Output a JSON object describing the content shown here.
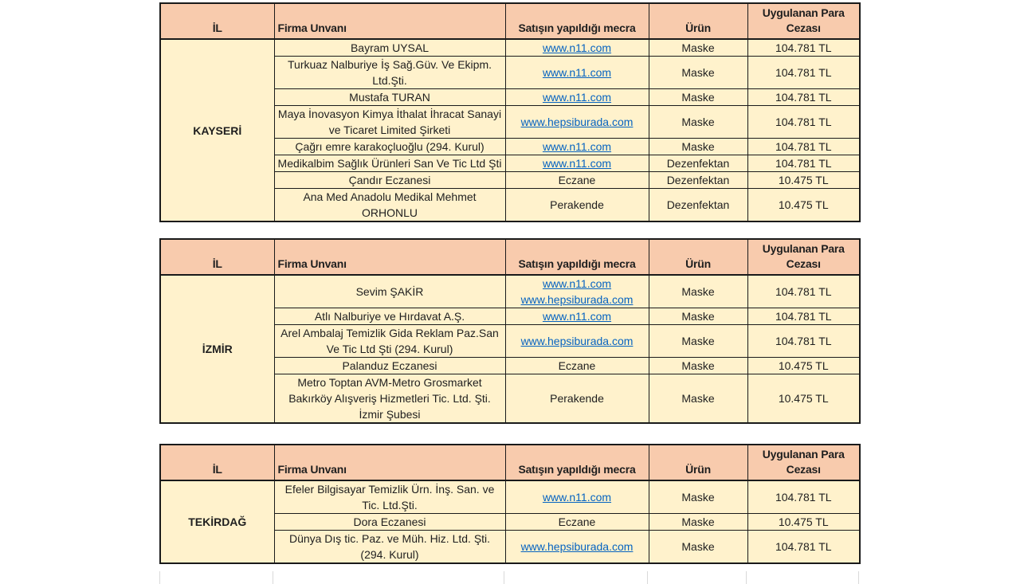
{
  "colors": {
    "header_bg": "#F8CBAD",
    "body_bg": "#FFF2CC",
    "border": "#1a1a1a",
    "link": "#0563C1",
    "text": "#1f1f1f"
  },
  "columns": {
    "il": "İL",
    "firma": "Firma Unvanı",
    "mecra": "Satışın yapıldığı mecra",
    "urun": "Ürün",
    "ceza": "Uygulanan Para Cezası"
  },
  "tables": [
    {
      "il": "KAYSERİ",
      "rows": [
        {
          "firma": "Bayram UYSAL",
          "mecra": [
            "www.n11.com"
          ],
          "mecra_is_link": true,
          "urun": "Maske",
          "ceza": "104.781 TL"
        },
        {
          "firma": "Turkuaz Nalburiye İş Sağ.Güv. Ve Ekipm. Ltd.Şti.",
          "mecra": [
            "www.n11.com"
          ],
          "mecra_is_link": true,
          "urun": "Maske",
          "ceza": "104.781 TL"
        },
        {
          "firma": "Mustafa TURAN",
          "mecra": [
            "www.n11.com"
          ],
          "mecra_is_link": true,
          "urun": "Maske",
          "ceza": "104.781 TL"
        },
        {
          "firma": "Maya İnovasyon Kimya İthalat İhracat Sanayi ve Ticaret Limited Şirketi",
          "mecra": [
            "www.hepsiburada.com"
          ],
          "mecra_is_link": true,
          "urun": "Maske",
          "ceza": "104.781 TL"
        },
        {
          "firma": "Çağrı emre karakoçluoğlu (294. Kurul)",
          "mecra": [
            "www.n11.com"
          ],
          "mecra_is_link": true,
          "urun": "Maske",
          "ceza": "104.781 TL"
        },
        {
          "firma": "Medikalbim Sağlık Ürünleri San Ve Tic Ltd Şti",
          "mecra": [
            "www.n11.com"
          ],
          "mecra_is_link": true,
          "urun": "Dezenfektan",
          "ceza": "104.781 TL"
        },
        {
          "firma": "Çandır Eczanesi",
          "mecra": [
            "Eczane"
          ],
          "mecra_is_link": false,
          "urun": "Dezenfektan",
          "ceza": "10.475 TL"
        },
        {
          "firma": "Ana Med Anadolu Medikal Mehmet ORHONLU",
          "mecra": [
            "Perakende"
          ],
          "mecra_is_link": false,
          "urun": "Dezenfektan",
          "ceza": "10.475 TL"
        }
      ]
    },
    {
      "il": "İZMİR",
      "rows": [
        {
          "firma": "Sevim ŞAKİR",
          "mecra": [
            "www.n11.com",
            "www.hepsiburada.com"
          ],
          "mecra_is_link": true,
          "urun": "Maske",
          "ceza": "104.781 TL"
        },
        {
          "firma": "Atlı Nalburiye ve Hırdavat A.Ş.",
          "mecra": [
            "www.n11.com"
          ],
          "mecra_is_link": true,
          "urun": "Maske",
          "ceza": "104.781 TL"
        },
        {
          "firma": "Arel Ambalaj Temizlik Gida Reklam Paz.San Ve Tic Ltd Şti (294. Kurul)",
          "mecra": [
            "www.hepsiburada.com"
          ],
          "mecra_is_link": true,
          "urun": "Maske",
          "ceza": "104.781 TL"
        },
        {
          "firma": "Palanduz Eczanesi",
          "mecra": [
            "Eczane"
          ],
          "mecra_is_link": false,
          "urun": "Maske",
          "ceza": "10.475 TL"
        },
        {
          "firma": "Metro Toptan AVM-Metro Grosmarket Bakırköy Alışveriş Hizmetleri Tic. Ltd. Şti. İzmir Şubesi",
          "mecra": [
            "Perakende"
          ],
          "mecra_is_link": false,
          "urun": "Maske",
          "ceza": "10.475 TL"
        }
      ]
    },
    {
      "il": "TEKİRDAĞ",
      "rows": [
        {
          "firma": "Efeler Bilgisayar Temizlik Ürn. İnş. San. ve Tic. Ltd.Şti.",
          "mecra": [
            "www.n11.com"
          ],
          "mecra_is_link": true,
          "urun": "Maske",
          "ceza": "104.781 TL"
        },
        {
          "firma": "Dora Eczanesi",
          "mecra": [
            "Eczane"
          ],
          "mecra_is_link": false,
          "urun": "Maske",
          "ceza": "10.475 TL"
        },
        {
          "firma": "Dünya Dış tic. Paz. ve Müh. Hiz. Ltd. Şti. (294. Kurul)",
          "mecra": [
            "www.hepsiburada.com"
          ],
          "mecra_is_link": true,
          "urun": "Maske",
          "ceza": "104.781 TL"
        }
      ]
    }
  ]
}
